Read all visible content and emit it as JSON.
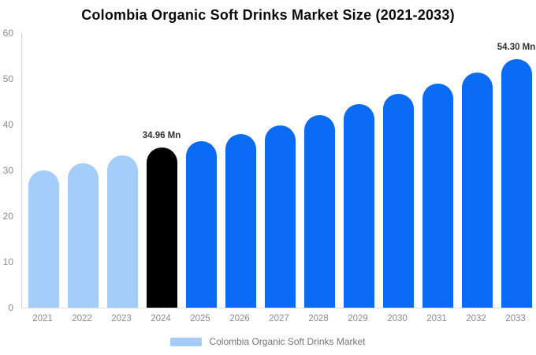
{
  "chart_data": {
    "type": "bar",
    "title": "Colombia Organic Soft Drinks Market Size (2021-2033)",
    "categories": [
      "2021",
      "2022",
      "2023",
      "2024",
      "2025",
      "2026",
      "2027",
      "2028",
      "2029",
      "2030",
      "2031",
      "2032",
      "2033"
    ],
    "series": [
      {
        "name": "Colombia Organic Soft Drinks Market",
        "values": [
          30.0,
          31.5,
          33.2,
          34.96,
          36.3,
          37.9,
          39.8,
          42.1,
          44.5,
          46.7,
          49.0,
          51.3,
          54.3
        ]
      }
    ],
    "unit": "Mn",
    "bar_styles": [
      "historical",
      "historical",
      "historical",
      "base",
      "forecast",
      "forecast",
      "forecast",
      "forecast",
      "forecast",
      "forecast",
      "forecast",
      "forecast",
      "forecast"
    ],
    "colors": {
      "historical": "#A4CDFA",
      "base": "#000000",
      "forecast": "#0A6CF5"
    },
    "data_labels": [
      {
        "category": "2024",
        "text": "34.96 Mn"
      },
      {
        "category": "2033",
        "text": "54.30 Mn"
      }
    ],
    "xlabel": "",
    "ylabel": "",
    "ylim": [
      0,
      60
    ],
    "yticks": [
      0,
      10,
      20,
      30,
      40,
      50,
      60
    ],
    "grid": false,
    "legend": {
      "position": "bottom",
      "entries": [
        {
          "label": "Colombia Organic Soft Drinks Market",
          "color": "#A4CDFA"
        }
      ]
    }
  }
}
